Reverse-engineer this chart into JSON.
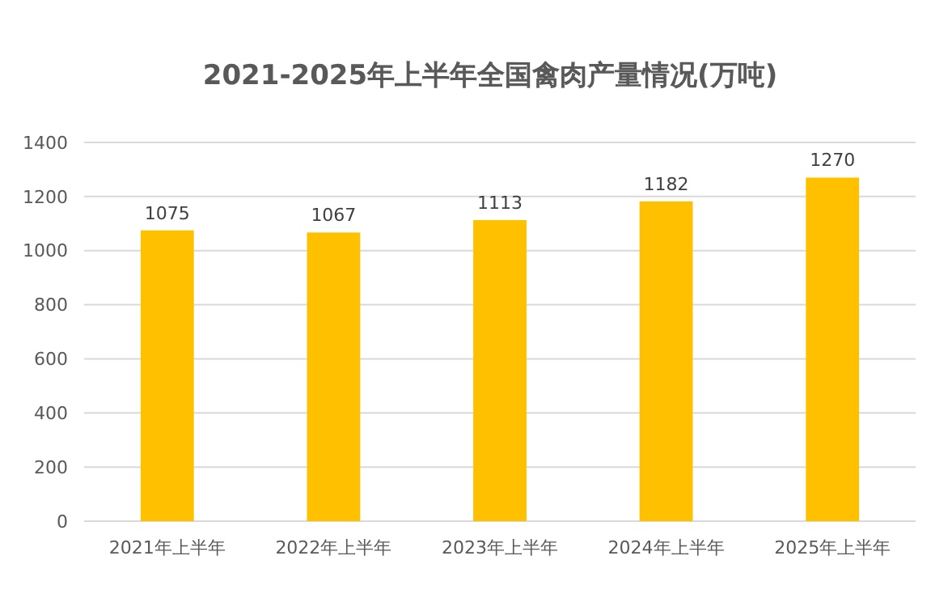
{
  "chart_data": {
    "type": "bar",
    "title": "2021-2025年上半年全国禽肉产量情况(万吨)",
    "categories": [
      "2021年上半年",
      "2022年上半年",
      "2023年上半年",
      "2024年上半年",
      "2025年上半年"
    ],
    "values": [
      1075,
      1067,
      1113,
      1182,
      1270
    ],
    "color": "#ffc000",
    "ylim": [
      0,
      1400
    ],
    "yticks": [
      0,
      200,
      400,
      600,
      800,
      1000,
      1200,
      1400
    ],
    "grid": "y",
    "data_labels": true
  }
}
